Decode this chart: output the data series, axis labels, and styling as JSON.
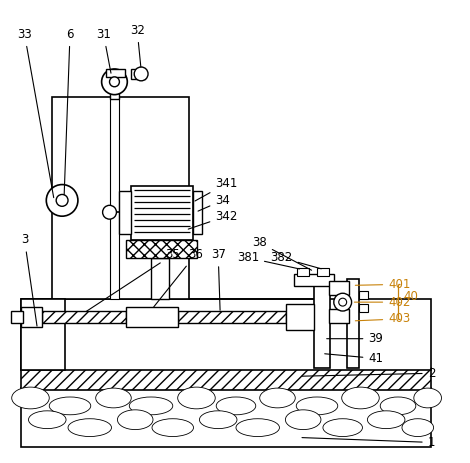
{
  "bg_color": "#ffffff",
  "line_color": "#000000",
  "orange": "#c8820a",
  "fig_width": 4.7,
  "fig_height": 4.63,
  "dpi": 100
}
